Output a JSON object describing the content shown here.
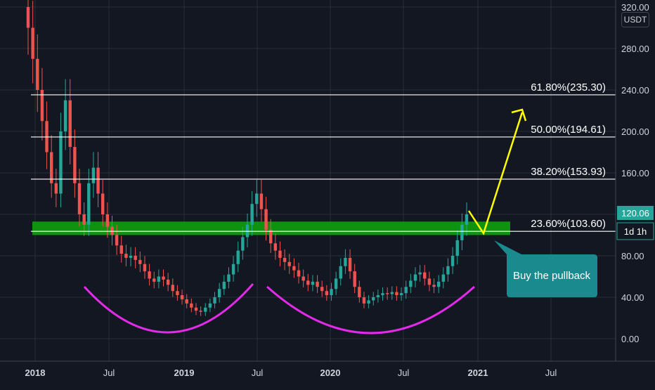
{
  "currency": "USDT",
  "price_label": "120.06",
  "interval_label": "1d 1h",
  "callout_text": "Buy the pullback",
  "colors": {
    "background": "#131722",
    "grid": "#2a2e39",
    "up": "#26a69a",
    "down": "#ef5350",
    "zone": "#0e9a0e",
    "arc": "#e12be8",
    "arrow": "#ffff00",
    "callout": "#1b8a8f",
    "price_badge": "#26a69a"
  },
  "chart_data": {
    "type": "candlestick",
    "title": "",
    "ylim": [
      -20,
      330
    ],
    "y_ticks": [
      "0.00",
      "40.00",
      "80.00",
      "120.00",
      "160.00",
      "200.00",
      "240.00",
      "280.00",
      "320.00"
    ],
    "x_ticks": [
      "2018",
      "Jul",
      "2019",
      "Jul",
      "2020",
      "Jul",
      "2021",
      "Jul"
    ],
    "fib_levels": [
      {
        "label": "61.80%(235.30)",
        "value": 235.3
      },
      {
        "label": "50.00%(194.61)",
        "value": 194.61
      },
      {
        "label": "38.20%(153.93)",
        "value": 153.93
      },
      {
        "label": "23.60%(103.60)",
        "value": 103.6
      }
    ],
    "support_zone": [
      100,
      113
    ],
    "last_price": 120.06,
    "candle_closes": [
      300,
      270,
      240,
      210,
      180,
      150,
      140,
      200,
      230,
      185,
      150,
      120,
      110,
      150,
      165,
      140,
      120,
      108,
      100,
      90,
      82,
      78,
      80,
      76,
      72,
      65,
      58,
      55,
      60,
      57,
      52,
      46,
      42,
      38,
      34,
      30,
      27,
      26,
      30,
      34,
      40,
      48,
      55,
      62,
      72,
      85,
      98,
      110,
      130,
      140,
      125,
      105,
      92,
      85,
      78,
      74,
      70,
      66,
      60,
      56,
      52,
      55,
      50,
      46,
      42,
      48,
      58,
      70,
      78,
      65,
      50,
      40,
      34,
      37,
      40,
      42,
      44,
      43,
      45,
      42,
      44,
      50,
      56,
      62,
      64,
      58,
      52,
      50,
      55,
      62,
      70,
      80,
      95,
      110,
      120
    ]
  }
}
